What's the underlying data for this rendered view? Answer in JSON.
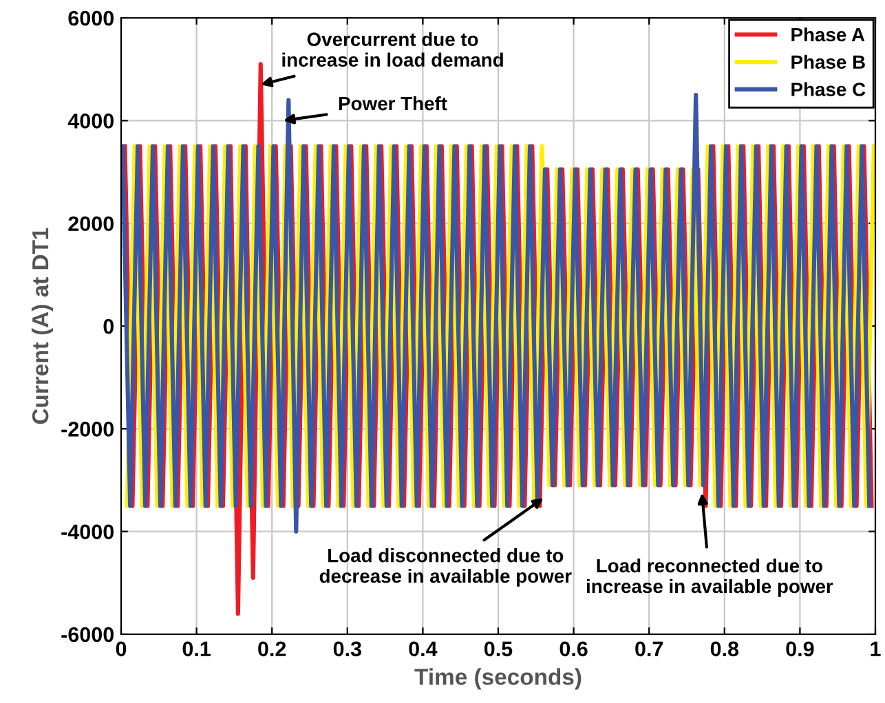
{
  "chart_data": {
    "type": "line",
    "xlabel": "Time (seconds)",
    "ylabel": "Current (A) at DT1",
    "xlim": [
      0,
      1
    ],
    "xticks": [
      0,
      0.1,
      0.2,
      0.3,
      0.4,
      0.5,
      0.6,
      0.7,
      0.8,
      0.9,
      1
    ],
    "ylim": [
      -6000,
      6000
    ],
    "yticks": [
      -6000,
      -4000,
      -2000,
      0,
      2000,
      4000,
      6000
    ],
    "grid": true,
    "legend": "top right",
    "series": [
      {
        "name": "Phase A",
        "color": "#ee1c24",
        "x": [
          0.005,
          0.015,
          0.025,
          0.035,
          0.045,
          0.055,
          0.065,
          0.075,
          0.085,
          0.095,
          0.105,
          0.115,
          0.125,
          0.135,
          0.145,
          0.155,
          0.165,
          0.175,
          0.185,
          0.195,
          0.205,
          0.215,
          0.225,
          0.235,
          0.245,
          0.255,
          0.265,
          0.275,
          0.285,
          0.295,
          0.305,
          0.315,
          0.325,
          0.335,
          0.345,
          0.355,
          0.365,
          0.375,
          0.385,
          0.395,
          0.405,
          0.415,
          0.425,
          0.435,
          0.445,
          0.455,
          0.465,
          0.475,
          0.485,
          0.495,
          0.505,
          0.515,
          0.525,
          0.535,
          0.545,
          0.555,
          0.565,
          0.575,
          0.585,
          0.595,
          0.605,
          0.615,
          0.625,
          0.635,
          0.645,
          0.655,
          0.665,
          0.675,
          0.685,
          0.695,
          0.705,
          0.715,
          0.725,
          0.735,
          0.745,
          0.755,
          0.765,
          0.775,
          0.785,
          0.795,
          0.805,
          0.815,
          0.825,
          0.835,
          0.845,
          0.855,
          0.865,
          0.875,
          0.885,
          0.895,
          0.905,
          0.915,
          0.925,
          0.935,
          0.945,
          0.955,
          0.965,
          0.975,
          0.985,
          0.995
        ],
        "values": [
          3500,
          -3500,
          3500,
          -3500,
          3500,
          -3500,
          3500,
          -3500,
          3500,
          -3500,
          3500,
          -3500,
          3500,
          -3500,
          3500,
          -5600,
          3500,
          -4900,
          5100,
          -3500,
          3500,
          -3500,
          3500,
          -3500,
          3500,
          -3500,
          3500,
          -3500,
          3500,
          -3500,
          3500,
          -3500,
          3500,
          -3500,
          3500,
          -3500,
          3500,
          -3500,
          3500,
          -3500,
          3500,
          -3500,
          3500,
          -3500,
          3500,
          -3500,
          3500,
          -3500,
          3500,
          -3500,
          3500,
          -3500,
          3500,
          -3500,
          3500,
          -3500,
          3050,
          -3100,
          3050,
          -3100,
          3050,
          -3100,
          3050,
          -3100,
          3050,
          -3100,
          3050,
          -3100,
          3050,
          -3100,
          3050,
          -3100,
          3050,
          -3100,
          3050,
          -3100,
          3050,
          -3500,
          3500,
          -3500,
          3500,
          -3500,
          3500,
          -3500,
          3500,
          -3500,
          3500,
          -3500,
          3500,
          -3500,
          3500,
          -3500,
          3500,
          -3500,
          3500,
          -3500,
          3500,
          -3500,
          3500,
          -3500
        ]
      },
      {
        "name": "Phase B",
        "color": "#ffee00",
        "x": [
          0.008,
          0.018,
          0.028,
          0.038,
          0.048,
          0.058,
          0.068,
          0.078,
          0.088,
          0.098,
          0.108,
          0.118,
          0.128,
          0.138,
          0.148,
          0.158,
          0.168,
          0.178,
          0.188,
          0.198,
          0.208,
          0.218,
          0.228,
          0.238,
          0.248,
          0.258,
          0.268,
          0.278,
          0.288,
          0.298,
          0.308,
          0.318,
          0.328,
          0.338,
          0.348,
          0.358,
          0.368,
          0.378,
          0.388,
          0.398,
          0.408,
          0.418,
          0.428,
          0.438,
          0.448,
          0.458,
          0.468,
          0.478,
          0.488,
          0.498,
          0.508,
          0.518,
          0.528,
          0.538,
          0.548,
          0.558,
          0.568,
          0.578,
          0.588,
          0.598,
          0.608,
          0.618,
          0.628,
          0.638,
          0.648,
          0.658,
          0.668,
          0.678,
          0.688,
          0.698,
          0.708,
          0.718,
          0.728,
          0.738,
          0.748,
          0.758,
          0.768,
          0.778,
          0.788,
          0.798,
          0.808,
          0.818,
          0.828,
          0.838,
          0.848,
          0.858,
          0.868,
          0.878,
          0.888,
          0.898,
          0.908,
          0.918,
          0.928,
          0.938,
          0.948,
          0.958,
          0.968,
          0.978,
          0.988,
          0.998
        ],
        "values": [
          -3500,
          3500,
          -3500,
          3500,
          -3500,
          3500,
          -3500,
          3500,
          -3500,
          3500,
          -3500,
          3500,
          -3500,
          3500,
          -3500,
          3500,
          -3500,
          3500,
          -3500,
          3500,
          -3500,
          3500,
          -3500,
          3500,
          -3500,
          3500,
          -3500,
          3500,
          -3500,
          3500,
          -3500,
          3500,
          -3500,
          3500,
          -3500,
          3500,
          -3500,
          3500,
          -3500,
          3500,
          -3500,
          3500,
          -3500,
          3500,
          -3500,
          3500,
          -3500,
          3500,
          -3500,
          3500,
          -3500,
          3500,
          -3500,
          3500,
          -3500,
          3500,
          -3100,
          3050,
          -3100,
          3050,
          -3100,
          3050,
          -3100,
          3050,
          -3100,
          3050,
          -3100,
          3050,
          -3100,
          3050,
          -3100,
          3050,
          -3100,
          3050,
          -3100,
          3050,
          -3100,
          3500,
          -3500,
          3500,
          -3500,
          3500,
          -3500,
          3500,
          -3500,
          3500,
          -3500,
          3500,
          -3500,
          3500,
          -3500,
          3500,
          -3500,
          3500,
          -3500,
          3500,
          -3500,
          3500,
          -3500,
          3500
        ]
      },
      {
        "name": "Phase C",
        "color": "#3a56a8",
        "x": [
          0.002,
          0.012,
          0.022,
          0.032,
          0.042,
          0.052,
          0.062,
          0.072,
          0.082,
          0.092,
          0.102,
          0.112,
          0.122,
          0.132,
          0.142,
          0.152,
          0.162,
          0.172,
          0.182,
          0.192,
          0.202,
          0.212,
          0.222,
          0.232,
          0.242,
          0.252,
          0.262,
          0.272,
          0.282,
          0.292,
          0.302,
          0.312,
          0.322,
          0.332,
          0.342,
          0.352,
          0.362,
          0.372,
          0.382,
          0.392,
          0.402,
          0.412,
          0.422,
          0.432,
          0.442,
          0.452,
          0.462,
          0.472,
          0.482,
          0.492,
          0.502,
          0.512,
          0.522,
          0.532,
          0.542,
          0.552,
          0.562,
          0.572,
          0.582,
          0.592,
          0.602,
          0.612,
          0.622,
          0.632,
          0.642,
          0.652,
          0.662,
          0.672,
          0.682,
          0.692,
          0.702,
          0.712,
          0.722,
          0.732,
          0.742,
          0.752,
          0.762,
          0.772,
          0.782,
          0.792,
          0.802,
          0.812,
          0.822,
          0.832,
          0.842,
          0.852,
          0.862,
          0.872,
          0.882,
          0.892,
          0.902,
          0.912,
          0.922,
          0.932,
          0.942,
          0.952,
          0.962,
          0.972,
          0.982,
          0.992
        ],
        "values": [
          3500,
          -3500,
          3500,
          -3500,
          3500,
          -3500,
          3500,
          -3500,
          3500,
          -3500,
          3500,
          -3500,
          3500,
          -3500,
          3500,
          -3500,
          3500,
          -3500,
          3500,
          -3500,
          3500,
          -3500,
          4400,
          -4000,
          3500,
          -3500,
          3500,
          -3500,
          3500,
          -3500,
          3500,
          -3500,
          3500,
          -3500,
          3500,
          -3500,
          3500,
          -3500,
          3500,
          -3500,
          3500,
          -3500,
          3500,
          -3500,
          3500,
          -3500,
          3500,
          -3500,
          3500,
          -3500,
          3500,
          -3500,
          3500,
          -3500,
          3500,
          -3500,
          3050,
          -3100,
          3050,
          -3100,
          3050,
          -3100,
          3050,
          -3100,
          3050,
          -3100,
          3050,
          -3100,
          3050,
          -3100,
          3050,
          -3100,
          3050,
          -3100,
          3050,
          -3100,
          4500,
          -3100,
          3500,
          -3500,
          3500,
          -3500,
          3500,
          -3500,
          3500,
          -3500,
          3500,
          -3500,
          3500,
          -3500,
          3500,
          -3500,
          3500,
          -3500,
          3500,
          -3500,
          3500,
          -3500,
          3500,
          -3500
        ]
      }
    ],
    "annotations": [
      {
        "text": "Overcurrent due to\nincrease in load demand",
        "x": 0.185,
        "y": 4700
      },
      {
        "text": "Power Theft",
        "x": 0.215,
        "y": 4000
      },
      {
        "text": "Load disconnected due to\ndecrease in available power",
        "x": 0.56,
        "y": -3350
      },
      {
        "text": "Load reconnected due to\nincrease in available power",
        "x": 0.77,
        "y": -3250
      }
    ]
  }
}
